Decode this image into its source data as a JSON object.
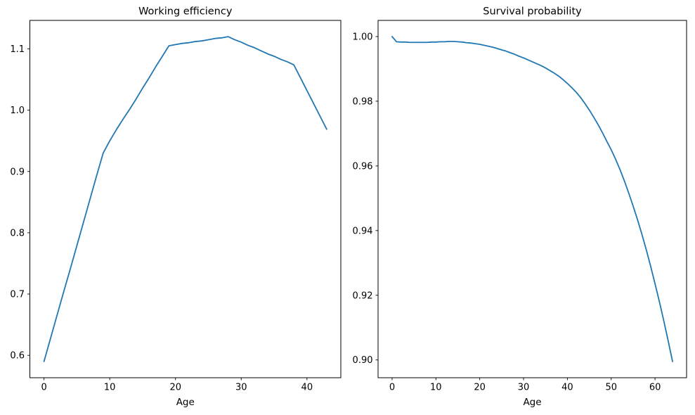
{
  "figure": {
    "background": "#ffffff",
    "text_color": "#000000",
    "spine_color": "#000000"
  },
  "chart_data": [
    {
      "id": "working-efficiency",
      "type": "line",
      "title": "Working efficiency",
      "xlabel": "Age",
      "ylabel": "",
      "legend": "none",
      "grid": false,
      "line_color": "#1f77b4",
      "xlim": [
        -2.15,
        45.15
      ],
      "ylim": [
        0.5635,
        1.1465
      ],
      "xticks": [
        0,
        10,
        20,
        30,
        40
      ],
      "xtick_labels": [
        "0",
        "10",
        "20",
        "30",
        "40"
      ],
      "yticks": [
        0.6,
        0.7,
        0.8,
        0.9,
        1.0,
        1.1
      ],
      "ytick_labels": [
        "0.6",
        "0.7",
        "0.8",
        "0.9",
        "1.0",
        "1.1"
      ],
      "x": [
        0,
        1,
        2,
        3,
        4,
        5,
        6,
        7,
        8,
        9,
        10,
        11,
        12,
        13,
        14,
        15,
        16,
        17,
        18,
        19,
        20,
        21,
        22,
        23,
        24,
        25,
        26,
        27,
        28,
        29,
        30,
        31,
        32,
        33,
        34,
        35,
        36,
        37,
        38,
        39,
        40,
        41,
        42,
        43
      ],
      "y": [
        0.59,
        0.628,
        0.666,
        0.704,
        0.741,
        0.779,
        0.817,
        0.855,
        0.893,
        0.93,
        0.95,
        0.968,
        0.985,
        1.001,
        1.018,
        1.036,
        1.053,
        1.071,
        1.088,
        1.105,
        1.107,
        1.109,
        1.11,
        1.112,
        1.113,
        1.115,
        1.117,
        1.118,
        1.12,
        1.115,
        1.111,
        1.106,
        1.102,
        1.097,
        1.092,
        1.088,
        1.083,
        1.079,
        1.074,
        1.053,
        1.032,
        1.011,
        0.99,
        0.969
      ]
    },
    {
      "id": "survival-probability",
      "type": "line",
      "title": "Survival probability",
      "xlabel": "Age",
      "ylabel": "",
      "legend": "none",
      "grid": false,
      "line_color": "#1f77b4",
      "xlim": [
        -3.2,
        67.2
      ],
      "ylim": [
        0.8945,
        1.005
      ],
      "xticks": [
        0,
        10,
        20,
        30,
        40,
        50,
        60
      ],
      "xtick_labels": [
        "0",
        "10",
        "20",
        "30",
        "40",
        "50",
        "60"
      ],
      "yticks": [
        0.9,
        0.92,
        0.94,
        0.96,
        0.98,
        1.0
      ],
      "ytick_labels": [
        "0.90",
        "0.92",
        "0.94",
        "0.96",
        "0.98",
        "1.00"
      ],
      "x": [
        0,
        1,
        2,
        3,
        4,
        5,
        6,
        7,
        8,
        9,
        10,
        11,
        12,
        13,
        14,
        15,
        16,
        17,
        18,
        19,
        20,
        21,
        22,
        23,
        24,
        25,
        26,
        27,
        28,
        29,
        30,
        31,
        32,
        33,
        34,
        35,
        36,
        37,
        38,
        39,
        40,
        41,
        42,
        43,
        44,
        45,
        46,
        47,
        48,
        49,
        50,
        51,
        52,
        53,
        54,
        55,
        56,
        57,
        58,
        59,
        60,
        61,
        62,
        63,
        64
      ],
      "y": [
        1.0,
        0.9984,
        0.9983,
        0.9983,
        0.9982,
        0.9982,
        0.9982,
        0.9982,
        0.9982,
        0.9983,
        0.9983,
        0.9984,
        0.9984,
        0.9985,
        0.9985,
        0.9984,
        0.9983,
        0.9981,
        0.998,
        0.9978,
        0.9976,
        0.9973,
        0.997,
        0.9967,
        0.9963,
        0.9959,
        0.9955,
        0.995,
        0.9945,
        0.9939,
        0.9934,
        0.9928,
        0.9922,
        0.9916,
        0.991,
        0.9903,
        0.9895,
        0.9887,
        0.9878,
        0.9867,
        0.9855,
        0.9842,
        0.9828,
        0.9812,
        0.9793,
        0.9773,
        0.9751,
        0.9728,
        0.9703,
        0.9676,
        0.965,
        0.9621,
        0.9589,
        0.9554,
        0.9516,
        0.9476,
        0.9434,
        0.9389,
        0.9341,
        0.929,
        0.9236,
        0.918,
        0.9121,
        0.9059,
        0.8995
      ]
    }
  ]
}
